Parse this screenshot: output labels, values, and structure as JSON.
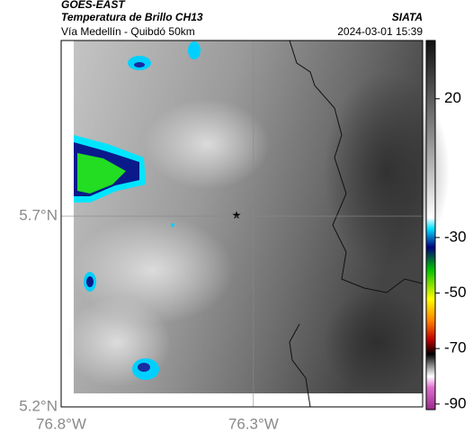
{
  "header": {
    "title": "GOES-EAST",
    "subtitle": "Temperatura de Brillo CH13",
    "route": "Vía Medellín - Quibdó 50km",
    "source": "SIATA",
    "timestamp": "2024-03-01 15:39"
  },
  "map": {
    "xlim": [
      -76.8,
      -75.86
    ],
    "ylim": [
      5.2,
      6.16
    ],
    "xticks": [
      {
        "value": -76.8,
        "label": "76.8°W"
      },
      {
        "value": -76.3,
        "label": "76.3°W"
      }
    ],
    "yticks": [
      {
        "value": 5.2,
        "label": "5.2°N"
      },
      {
        "value": 5.7,
        "label": "5.7°N"
      }
    ]
  },
  "colorbar": {
    "lim": [
      -92,
      41
    ],
    "ticks": [
      20,
      -30,
      -50,
      -70,
      -90
    ]
  }
}
